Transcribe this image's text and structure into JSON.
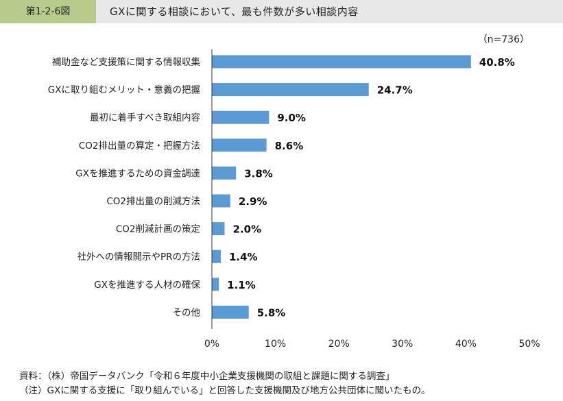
{
  "header": {
    "figure_label": "第1-2-6図",
    "title": "GXに関する相談において、最も件数が多い相談内容"
  },
  "notes": {
    "source": "資料：（株）帝国データバンク「令和６年度中小企業支援機関の取組と課題に関する調査」",
    "note": "（注）GXに関する支援に「取り組んでいる」と回答した支援機関及び地方公共団体に聞いたもの。"
  },
  "chart_data": {
    "type": "bar",
    "orientation": "horizontal",
    "annotation": "（n=736）",
    "categories": [
      "補助金など支援策に関する情報収集",
      "GXに取り組むメリット・意義の把握",
      "最初に着手すべき取組内容",
      "CO2排出量の算定・把握方法",
      "GXを推進するための資金調達",
      "CO2排出量の削減方法",
      "CO2削減計画の策定",
      "社外への情報開示やPRの方法",
      "GXを推進する人材の確保",
      "その他"
    ],
    "values": [
      40.8,
      24.7,
      9.0,
      8.6,
      3.8,
      2.9,
      2.0,
      1.4,
      1.1,
      5.8
    ],
    "value_labels": [
      "40.8%",
      "24.7%",
      "9.0%",
      "8.6%",
      "3.8%",
      "2.9%",
      "2.0%",
      "1.4%",
      "1.1%",
      "5.8%"
    ],
    "xlim": [
      0,
      50
    ],
    "x_ticks": [
      0,
      10,
      20,
      30,
      40,
      50
    ],
    "x_tick_labels": [
      "0%",
      "10%",
      "20%",
      "30%",
      "40%",
      "50%"
    ],
    "grid": false,
    "legend": "none",
    "bar_color": "#5b9bd5"
  }
}
